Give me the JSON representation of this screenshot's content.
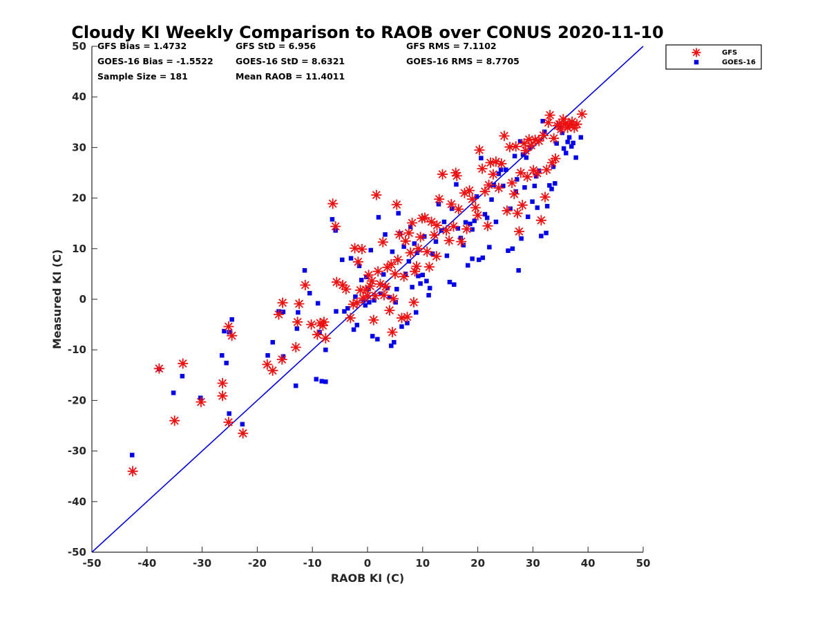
{
  "chart_data": {
    "type": "scatter",
    "title": "Cloudy KI Weekly Comparison to RAOB over CONUS 2020-11-10",
    "xlabel": "RAOB KI (C)",
    "ylabel": "Measured KI (C)",
    "xlim": [
      -50,
      50
    ],
    "ylim": [
      -50,
      50
    ],
    "xticks": [
      "-50",
      "-40",
      "-30",
      "-20",
      "-10",
      "0",
      "10",
      "20",
      "30",
      "40",
      "50"
    ],
    "yticks": [
      "50",
      "40",
      "30",
      "20",
      "10",
      "0",
      "-10",
      "-20",
      "-30",
      "-40",
      "-50"
    ],
    "grid": false,
    "legend_position": "top-right outside",
    "reference_line": {
      "label": "1:1",
      "from": [
        -50,
        -50
      ],
      "to": [
        50,
        50
      ],
      "color": "#0000dd"
    },
    "stats": [
      [
        "GFS Bias = 1.4732",
        "GFS StD = 6.956",
        "GFS RMS = 7.1102"
      ],
      [
        "GOES-16 Bias = -1.5522",
        "GOES-16 StD = 8.6321",
        "GOES-16 RMS = 8.7705"
      ],
      [
        "Sample Size = 181",
        "Mean RAOB = 11.4011",
        ""
      ]
    ],
    "series": [
      {
        "name": "GFS",
        "marker": "asterisk",
        "color": "#ee1111",
        "points": [
          [
            -42.6,
            -34.0
          ],
          [
            -37.8,
            -13.7
          ],
          [
            -35.0,
            -24.0
          ],
          [
            -33.5,
            -12.7
          ],
          [
            -30.2,
            -20.3
          ],
          [
            -26.3,
            -19.1
          ],
          [
            -26.3,
            -16.6
          ],
          [
            -25.2,
            -24.3
          ],
          [
            -25.2,
            -5.4
          ],
          [
            -24.6,
            -7.2
          ],
          [
            -22.6,
            -26.5
          ],
          [
            -18.2,
            -12.9
          ],
          [
            -17.2,
            -14.1
          ],
          [
            -16.1,
            -3.0
          ],
          [
            -15.5,
            -11.9
          ],
          [
            -15.4,
            -0.7
          ],
          [
            -13.0,
            -9.5
          ],
          [
            -12.7,
            -4.5
          ],
          [
            -12.4,
            -0.9
          ],
          [
            -11.3,
            2.8
          ],
          [
            -10.2,
            -5.0
          ],
          [
            -9.1,
            -7.0
          ],
          [
            -8.6,
            -4.7
          ],
          [
            -8.1,
            -5.2
          ],
          [
            -7.9,
            -4.5
          ],
          [
            -7.6,
            -7.7
          ],
          [
            -6.3,
            18.9
          ],
          [
            -5.8,
            14.4
          ],
          [
            -5.6,
            3.4
          ],
          [
            -4.5,
            2.8
          ],
          [
            -3.9,
            2.0
          ],
          [
            -3.1,
            -3.7
          ],
          [
            -2.6,
            -1.0
          ],
          [
            -2.3,
            10.1
          ],
          [
            -1.7,
            7.4
          ],
          [
            -1.3,
            1.8
          ],
          [
            -1.0,
            9.9
          ],
          [
            -0.8,
            0.2
          ],
          [
            -0.3,
            1.9
          ],
          [
            0.0,
            0.7
          ],
          [
            0.2,
            4.8
          ],
          [
            0.5,
            2.6
          ],
          [
            0.8,
            3.6
          ],
          [
            1.1,
            -4.1
          ],
          [
            1.4,
            0.7
          ],
          [
            1.6,
            20.6
          ],
          [
            1.9,
            5.5
          ],
          [
            2.3,
            3.0
          ],
          [
            2.8,
            11.3
          ],
          [
            3.3,
            2.5
          ],
          [
            3.6,
            6.3
          ],
          [
            4.0,
            -2.2
          ],
          [
            4.3,
            6.9
          ],
          [
            4.5,
            -6.5
          ],
          [
            4.7,
            0.1
          ],
          [
            5.0,
            5.0
          ],
          [
            5.3,
            18.7
          ],
          [
            5.5,
            7.8
          ],
          [
            5.8,
            12.8
          ],
          [
            6.2,
            -3.7
          ],
          [
            6.6,
            4.5
          ],
          [
            6.9,
            11.5
          ],
          [
            7.2,
            -3.5
          ],
          [
            7.5,
            13.1
          ],
          [
            7.8,
            9.2
          ],
          [
            8.1,
            15.1
          ],
          [
            8.4,
            -0.6
          ],
          [
            8.6,
            5.5
          ],
          [
            8.9,
            6.5
          ],
          [
            9.2,
            10.0
          ],
          [
            9.6,
            12.3
          ],
          [
            9.9,
            16.0
          ],
          [
            10.4,
            16.1
          ],
          [
            10.8,
            9.4
          ],
          [
            11.2,
            6.4
          ],
          [
            11.6,
            15.3
          ],
          [
            12.1,
            12.7
          ],
          [
            12.6,
            14.6
          ],
          [
            13.0,
            19.8
          ],
          [
            13.6,
            24.7
          ],
          [
            14.3,
            13.6
          ],
          [
            14.8,
            11.6
          ],
          [
            15.2,
            18.8
          ],
          [
            15.6,
            14.4
          ],
          [
            16.0,
            25.0
          ],
          [
            16.5,
            17.8
          ],
          [
            17.0,
            11.4
          ],
          [
            17.6,
            21.0
          ],
          [
            18.0,
            13.9
          ],
          [
            18.5,
            21.5
          ],
          [
            19.0,
            19.8
          ],
          [
            19.6,
            18.1
          ],
          [
            20.0,
            16.6
          ],
          [
            20.3,
            29.5
          ],
          [
            20.8,
            25.8
          ],
          [
            21.3,
            21.3
          ],
          [
            21.8,
            14.5
          ],
          [
            22.3,
            27.0
          ],
          [
            22.8,
            24.7
          ],
          [
            23.3,
            27.2
          ],
          [
            23.8,
            22.0
          ],
          [
            24.3,
            26.8
          ],
          [
            24.8,
            32.3
          ],
          [
            25.3,
            17.5
          ],
          [
            25.8,
            30.1
          ],
          [
            26.2,
            23.0
          ],
          [
            26.6,
            20.8
          ],
          [
            26.9,
            30.2
          ],
          [
            27.2,
            17.0
          ],
          [
            27.5,
            13.4
          ],
          [
            27.8,
            25.0
          ],
          [
            28.1,
            18.6
          ],
          [
            28.4,
            30.8
          ],
          [
            28.7,
            29.4
          ],
          [
            29.0,
            24.2
          ],
          [
            29.3,
            31.6
          ],
          [
            29.7,
            30.4
          ],
          [
            30.1,
            25.5
          ],
          [
            30.4,
            31.5
          ],
          [
            30.8,
            24.9
          ],
          [
            31.1,
            31.3
          ],
          [
            31.5,
            15.6
          ],
          [
            31.9,
            32.4
          ],
          [
            32.2,
            20.2
          ],
          [
            32.5,
            25.6
          ],
          [
            32.8,
            34.9
          ],
          [
            33.1,
            36.4
          ],
          [
            33.5,
            27.0
          ],
          [
            33.8,
            31.8
          ],
          [
            34.1,
            27.8
          ],
          [
            34.5,
            34.3
          ],
          [
            34.8,
            34.6
          ],
          [
            35.1,
            33.6
          ],
          [
            35.5,
            35.6
          ],
          [
            35.9,
            34.8
          ],
          [
            36.3,
            33.9
          ],
          [
            36.7,
            34.4
          ],
          [
            37.1,
            35.1
          ],
          [
            37.5,
            33.9
          ],
          [
            38.0,
            34.6
          ],
          [
            38.9,
            36.6
          ],
          [
            16.2,
            24.4
          ],
          [
            22.0,
            22.6
          ],
          [
            12.5,
            8.5
          ],
          [
            3.0,
            0.8
          ],
          [
            -1.9,
            -0.7
          ]
        ]
      },
      {
        "name": "GOES-16",
        "marker": "square",
        "color": "#0000ee",
        "points": [
          [
            -42.7,
            -30.8
          ],
          [
            -37.8,
            -13.8
          ],
          [
            -35.2,
            -18.5
          ],
          [
            -33.6,
            -15.2
          ],
          [
            -30.3,
            -19.5
          ],
          [
            -26.4,
            -11.1
          ],
          [
            -26.0,
            -6.3
          ],
          [
            -25.6,
            -12.6
          ],
          [
            -25.1,
            -22.6
          ],
          [
            -25.1,
            -6.5
          ],
          [
            -24.6,
            -4.0
          ],
          [
            -22.7,
            -24.7
          ],
          [
            -18.1,
            -11.1
          ],
          [
            -17.2,
            -8.5
          ],
          [
            -16.1,
            -2.4
          ],
          [
            -15.3,
            -2.5
          ],
          [
            -15.3,
            -11.3
          ],
          [
            -13.0,
            -17.1
          ],
          [
            -12.8,
            -5.8
          ],
          [
            -12.6,
            -2.6
          ],
          [
            -11.4,
            5.7
          ],
          [
            -10.5,
            1.2
          ],
          [
            -9.3,
            -15.8
          ],
          [
            -9.0,
            -0.8
          ],
          [
            -8.7,
            -6.5
          ],
          [
            -8.3,
            -16.2
          ],
          [
            -7.6,
            -16.3
          ],
          [
            -7.6,
            -10.0
          ],
          [
            -6.4,
            15.8
          ],
          [
            -5.8,
            13.6
          ],
          [
            -5.7,
            -2.4
          ],
          [
            -4.6,
            7.8
          ],
          [
            -4.2,
            -2.4
          ],
          [
            -3.6,
            -1.8
          ],
          [
            -3.0,
            8.1
          ],
          [
            -2.5,
            -6.0
          ],
          [
            -2.2,
            0.5
          ],
          [
            -1.9,
            -5.1
          ],
          [
            -1.5,
            6.6
          ],
          [
            -1.1,
            3.8
          ],
          [
            -0.7,
            -0.2
          ],
          [
            -0.4,
            -1.2
          ],
          [
            0.0,
            2.0
          ],
          [
            0.3,
            -0.6
          ],
          [
            0.6,
            9.7
          ],
          [
            0.9,
            -7.3
          ],
          [
            1.2,
            -0.2
          ],
          [
            1.8,
            -7.9
          ],
          [
            2.0,
            16.2
          ],
          [
            2.4,
            1.1
          ],
          [
            2.9,
            4.9
          ],
          [
            3.2,
            12.8
          ],
          [
            3.6,
            2.2
          ],
          [
            4.0,
            0.4
          ],
          [
            4.3,
            -9.2
          ],
          [
            4.5,
            9.4
          ],
          [
            4.8,
            -8.5
          ],
          [
            5.1,
            -0.6
          ],
          [
            5.3,
            2.0
          ],
          [
            5.6,
            17.0
          ],
          [
            5.9,
            13.0
          ],
          [
            6.2,
            -5.4
          ],
          [
            6.6,
            10.4
          ],
          [
            6.9,
            5.0
          ],
          [
            7.2,
            -4.7
          ],
          [
            7.5,
            7.5
          ],
          [
            7.8,
            14.3
          ],
          [
            8.1,
            2.4
          ],
          [
            8.5,
            11.0
          ],
          [
            8.8,
            -2.6
          ],
          [
            9.2,
            4.6
          ],
          [
            9.6,
            3.1
          ],
          [
            10.0,
            4.8
          ],
          [
            10.3,
            12.4
          ],
          [
            10.7,
            3.6
          ],
          [
            11.1,
            0.8
          ],
          [
            11.3,
            2.2
          ],
          [
            11.8,
            9.0
          ],
          [
            12.4,
            11.4
          ],
          [
            12.9,
            18.8
          ],
          [
            13.4,
            13.6
          ],
          [
            13.9,
            15.3
          ],
          [
            14.4,
            8.6
          ],
          [
            14.9,
            3.4
          ],
          [
            15.3,
            17.9
          ],
          [
            15.7,
            2.9
          ],
          [
            16.1,
            22.7
          ],
          [
            16.4,
            14.0
          ],
          [
            16.9,
            12.1
          ],
          [
            17.4,
            10.7
          ],
          [
            17.8,
            15.2
          ],
          [
            18.2,
            6.7
          ],
          [
            18.6,
            14.9
          ],
          [
            19.0,
            8.0
          ],
          [
            19.4,
            15.5
          ],
          [
            19.8,
            20.3
          ],
          [
            20.2,
            7.8
          ],
          [
            20.6,
            27.9
          ],
          [
            20.9,
            8.2
          ],
          [
            21.3,
            16.8
          ],
          [
            21.7,
            16.1
          ],
          [
            22.1,
            10.3
          ],
          [
            22.5,
            19.7
          ],
          [
            22.9,
            22.6
          ],
          [
            23.3,
            15.3
          ],
          [
            23.8,
            24.8
          ],
          [
            24.2,
            25.6
          ],
          [
            24.6,
            22.4
          ],
          [
            25.1,
            25.6
          ],
          [
            25.5,
            9.6
          ],
          [
            25.9,
            17.9
          ],
          [
            26.3,
            10.0
          ],
          [
            26.7,
            28.3
          ],
          [
            27.1,
            23.7
          ],
          [
            27.4,
            5.7
          ],
          [
            27.7,
            31.2
          ],
          [
            27.9,
            12.0
          ],
          [
            28.2,
            28.6
          ],
          [
            28.5,
            22.1
          ],
          [
            28.8,
            28.0
          ],
          [
            29.1,
            16.3
          ],
          [
            29.5,
            30.0
          ],
          [
            29.9,
            19.3
          ],
          [
            30.3,
            22.4
          ],
          [
            30.6,
            24.3
          ],
          [
            30.8,
            18.1
          ],
          [
            31.1,
            25.4
          ],
          [
            31.5,
            12.5
          ],
          [
            31.8,
            35.2
          ],
          [
            32.1,
            33.1
          ],
          [
            32.4,
            13.1
          ],
          [
            32.6,
            18.4
          ],
          [
            33.0,
            22.5
          ],
          [
            33.4,
            21.8
          ],
          [
            33.7,
            26.2
          ],
          [
            34.0,
            22.9
          ],
          [
            34.3,
            30.8
          ],
          [
            34.7,
            34.5
          ],
          [
            35.0,
            33.9
          ],
          [
            35.3,
            32.9
          ],
          [
            35.6,
            29.8
          ],
          [
            36.0,
            28.9
          ],
          [
            36.3,
            31.1
          ],
          [
            36.6,
            32.0
          ],
          [
            37.0,
            30.2
          ],
          [
            37.3,
            30.9
          ],
          [
            37.8,
            28.0
          ],
          [
            38.7,
            32.0
          ],
          [
            26.9,
            21.3
          ],
          [
            19.0,
            13.8
          ],
          [
            9.0,
            9.2
          ],
          [
            -0.2,
            4.4
          ]
        ]
      }
    ]
  }
}
